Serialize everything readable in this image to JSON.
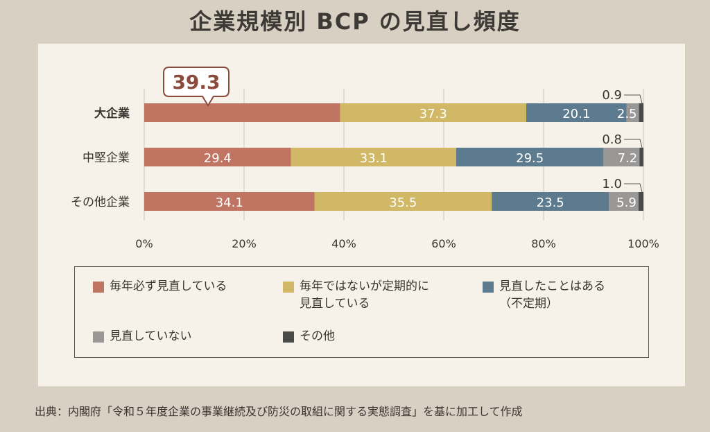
{
  "title": "企業規模別 BCP の見直し頻度",
  "source": "出典：内閣府「令和５年度企業の事業継続及び防災の取組に関する実態調査」を基に加工して作成",
  "colors": {
    "annual": "#c07562",
    "non_periodic_annual": "#d1b867",
    "reviewed_once": "#5c7b8e",
    "not_reviewed": "#9a9896",
    "other": "#4a4a4a",
    "background": "#d9d0c4",
    "panel": "#f6f2ea"
  },
  "legend": [
    {
      "label": "毎年必ず見直している",
      "color": "#c07562"
    },
    {
      "label": "毎年ではないが定期的に\n見直している",
      "color": "#d1b867"
    },
    {
      "label": "見直したことはある\n（不定期）",
      "color": "#5c7b8e"
    },
    {
      "label": "見直していない",
      "color": "#9a9896"
    },
    {
      "label": "その他",
      "color": "#4a4a4a"
    }
  ],
  "chart_data": {
    "type": "bar",
    "orientation": "horizontal",
    "stacked": true,
    "categories": [
      "大企業",
      "中堅企業",
      "その他企業"
    ],
    "series": [
      {
        "name": "毎年必ず見直している",
        "values": [
          39.3,
          29.4,
          34.1
        ]
      },
      {
        "name": "毎年ではないが定期的に見直している",
        "values": [
          37.3,
          33.1,
          35.5
        ]
      },
      {
        "name": "見直したことはある（不定期）",
        "values": [
          20.1,
          29.5,
          23.5
        ]
      },
      {
        "name": "見直していない",
        "values": [
          2.5,
          7.2,
          5.9
        ]
      },
      {
        "name": "その他",
        "values": [
          0.9,
          0.8,
          1.0
        ]
      }
    ],
    "xlim": [
      0,
      100
    ],
    "xticks": [
      "0%",
      "20%",
      "40%",
      "60%",
      "80%",
      "100%"
    ],
    "callout": "39.3",
    "grid": true,
    "legend_position": "bottom"
  }
}
